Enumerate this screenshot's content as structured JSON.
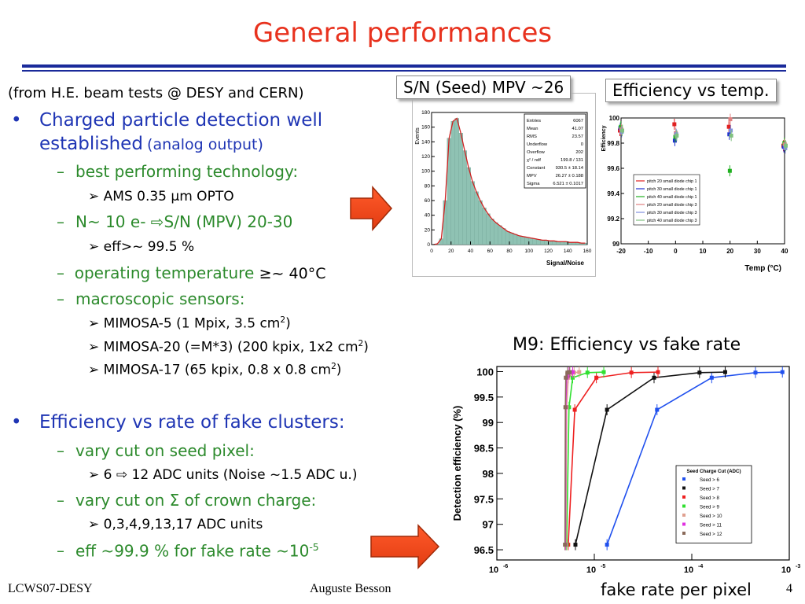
{
  "slide": {
    "title": "General performances",
    "footer_left": "LCWS07-DESY",
    "footer_center": "Auguste Besson",
    "page_number": "4"
  },
  "left_text": {
    "source": "(from H.E. beam tests @ DESY and CERN)",
    "b1_part1": "Charged particle detection well",
    "b1_part2": "established",
    "b1_part3": "(analog output)",
    "s1": "best performing technology:",
    "s1a": "AMS 0.35 µm OPTO",
    "s2_prefix": "N~ 10 e-",
    "s2_suffix": "S/N (MPV) 20-30",
    "s2a": "eff>~ 99.5 %",
    "s3_blue": "operating temperature",
    "s3_black": "≥~ 40°C",
    "s4": "macroscopic sensors:",
    "s4a": "MIMOSA-5 (1 Mpix, 3.5 cm",
    "s4a_close": ")",
    "s4b": "MIMOSA-20 (=M*3) (200 kpix, 1x2 cm",
    "s4b_close": ")",
    "s4c": "MIMOSA-17 (65 kpix, 0.8 x 0.8 cm",
    "s4c_close": ")",
    "sq": "2",
    "b2": "Efficiency vs rate of fake clusters:",
    "s5": "vary cut on seed pixel:",
    "s5a_from": "6",
    "s5a_to": "12 ADC units (Noise ~1.5 ADC u.)",
    "s6_prefix": "vary cut on",
    "s6_sigma": "Σ",
    "s6_suffix": "of crown charge:",
    "s6a": "0,3,4,9,13,17 ADC units",
    "s7": "eff ~99.9 % for fake rate ~10",
    "s7_exp": "-5"
  },
  "labels": {
    "sn": "S/N (Seed) MPV ~26",
    "eff_temp": "Efficiency vs temp.",
    "m9": "M9: Efficiency vs fake rate",
    "fake_rate": "fake rate per pixel"
  },
  "icons": {
    "arrow": "right-arrow-icon",
    "bullet": "arrow-bullet-icon"
  },
  "colors": {
    "title": "#e8321e",
    "accent": "#1f35b4",
    "sub": "#2c8a2c",
    "rule": "#1a2a9a"
  },
  "chart_data": [
    {
      "type": "bar",
      "title": "",
      "xlabel": "Signal/Noise",
      "ylabel": "Events",
      "xlim": [
        0,
        160
      ],
      "ylim": [
        0,
        180
      ],
      "x_ticks": [
        0,
        20,
        40,
        60,
        80,
        100,
        120,
        140,
        160
      ],
      "y_ticks": [
        0,
        20,
        40,
        60,
        80,
        100,
        120,
        140,
        160,
        180
      ],
      "bins": [
        2,
        6,
        10,
        14,
        18,
        22,
        26,
        30,
        34,
        38,
        42,
        46,
        50,
        54,
        58,
        62,
        66,
        70,
        74,
        78,
        82,
        86,
        90,
        94,
        98,
        102,
        106,
        110,
        114,
        118,
        122,
        126,
        130,
        134,
        138,
        142,
        146,
        150,
        154,
        158
      ],
      "values": [
        0,
        1,
        8,
        60,
        145,
        168,
        172,
        152,
        128,
        105,
        86,
        72,
        60,
        50,
        42,
        35,
        30,
        26,
        22,
        18,
        16,
        14,
        12,
        11,
        10,
        9,
        8,
        7,
        6,
        6,
        5,
        5,
        4,
        4,
        4,
        3,
        3,
        3,
        2,
        2
      ],
      "stats": [
        {
          "name": "Entries",
          "value": "6067"
        },
        {
          "name": "Mean",
          "value": "41.07"
        },
        {
          "name": "RMS",
          "value": "23.57"
        },
        {
          "name": "Underflow",
          "value": "0"
        },
        {
          "name": "Overflow",
          "value": "202"
        },
        {
          "name": "χ² / ndf",
          "value": "199.8 / 131"
        },
        {
          "name": "Constant",
          "value": "930.5 ± 18.14"
        },
        {
          "name": "MPV",
          "value": "26.27 ± 0.188"
        },
        {
          "name": "Sigma",
          "value": "6.521 ± 0.1017"
        }
      ]
    },
    {
      "type": "scatter",
      "title": "",
      "xlabel": "Temp (°C)",
      "ylabel": "Efficiency",
      "xlim": [
        -20,
        40
      ],
      "ylim": [
        99,
        100
      ],
      "x_ticks": [
        -20,
        -10,
        0,
        10,
        20,
        30,
        40
      ],
      "y_ticks": [
        99,
        99.2,
        99.4,
        99.6,
        99.8,
        100
      ],
      "series": [
        {
          "name": "pitch 20 small diode chip 1",
          "color": "#e02020",
          "x": [
            -20,
            0,
            20,
            40
          ],
          "y": [
            99.9,
            99.95,
            99.93,
            99.78
          ]
        },
        {
          "name": "pitch 30 small diode chip 1",
          "color": "#2030d0",
          "x": [
            -20,
            0,
            20,
            40
          ],
          "y": [
            99.92,
            99.82,
            99.87,
            99.77
          ]
        },
        {
          "name": "pitch 40 small diode chip 1",
          "color": "#20b020",
          "x": [
            -20,
            0,
            20,
            40
          ],
          "y": [
            99.93,
            99.85,
            99.58,
            99.8
          ]
        },
        {
          "name": "pitch 20 small diode chip 3",
          "color": "#e08080",
          "x": [
            -20,
            0,
            20,
            40
          ],
          "y": [
            99.91,
            99.88,
            99.99,
            99.79
          ]
        },
        {
          "name": "pitch 30 small diode chip 3",
          "color": "#8090e0",
          "x": [
            -20,
            0,
            20,
            40
          ],
          "y": [
            99.89,
            99.87,
            99.9,
            99.76
          ]
        },
        {
          "name": "pitch 40 small diode chip 3",
          "color": "#80c080",
          "x": [
            -20,
            0,
            20,
            40
          ],
          "y": [
            99.9,
            99.86,
            99.86,
            99.78
          ]
        }
      ]
    },
    {
      "type": "line",
      "title": "",
      "xlabel": "",
      "ylabel": "Detection efficiency (%)",
      "xscale": "log",
      "xlim": [
        1e-06,
        0.001
      ],
      "ylim": [
        96.3,
        100.1
      ],
      "x_ticks": [
        1e-06,
        1e-05,
        0.0001,
        0.001
      ],
      "x_tick_labels": [
        "10",
        "10",
        "10",
        "10"
      ],
      "x_tick_exps": [
        "-6",
        "-5",
        "-4",
        "-3"
      ],
      "y_ticks": [
        96.5,
        97,
        97.5,
        98,
        98.5,
        99,
        99.5,
        100
      ],
      "legend": {
        "title": "Seed Charge Cut (ADC)",
        "placement": "bottom-right"
      },
      "series": [
        {
          "name": "Seed > 6",
          "color": "#2050ee",
          "x": [
            1.35e-05,
            4.4e-05,
            0.00016,
            0.00045,
            0.00085
          ],
          "y": [
            96.6,
            99.25,
            99.88,
            99.98,
            99.99
          ]
        },
        {
          "name": "Seed > 7",
          "color": "#111111",
          "x": [
            6.4e-06,
            1.35e-05,
            4.1e-05,
            0.00012,
            0.00022
          ],
          "y": [
            96.6,
            99.25,
            99.88,
            99.98,
            99.99
          ]
        },
        {
          "name": "Seed > 8",
          "color": "#ee2020",
          "x": [
            5.4e-06,
            6.3e-06,
            1.05e-05,
            2.4e-05,
            4.5e-05
          ],
          "y": [
            96.6,
            99.25,
            99.88,
            99.98,
            99.99
          ]
        },
        {
          "name": "Seed > 9",
          "color": "#30e030",
          "x": [
            5.2e-06,
            5.5e-06,
            6e-06,
            8.5e-06,
            1.25e-05
          ],
          "y": [
            96.6,
            99.3,
            99.88,
            99.98,
            99.99
          ]
        },
        {
          "name": "Seed > 10",
          "color": "#e0a090",
          "x": [
            5.1e-06,
            5.2e-06,
            5.4e-06,
            6.2e-06,
            7e-06
          ],
          "y": [
            96.6,
            99.3,
            99.88,
            99.98,
            99.99
          ]
        },
        {
          "name": "Seed > 11",
          "color": "#e030e0",
          "x": [
            5.05e-06,
            5.1e-06,
            5.2e-06,
            5.5e-06,
            6e-06
          ],
          "y": [
            96.6,
            99.3,
            99.88,
            99.98,
            99.99
          ]
        },
        {
          "name": "Seed > 12",
          "color": "#8a6a5a",
          "x": [
            5e-06,
            5.05e-06,
            5.1e-06,
            5.3e-06,
            5.6e-06
          ],
          "y": [
            96.6,
            99.3,
            99.88,
            99.98,
            99.99
          ]
        }
      ]
    }
  ]
}
